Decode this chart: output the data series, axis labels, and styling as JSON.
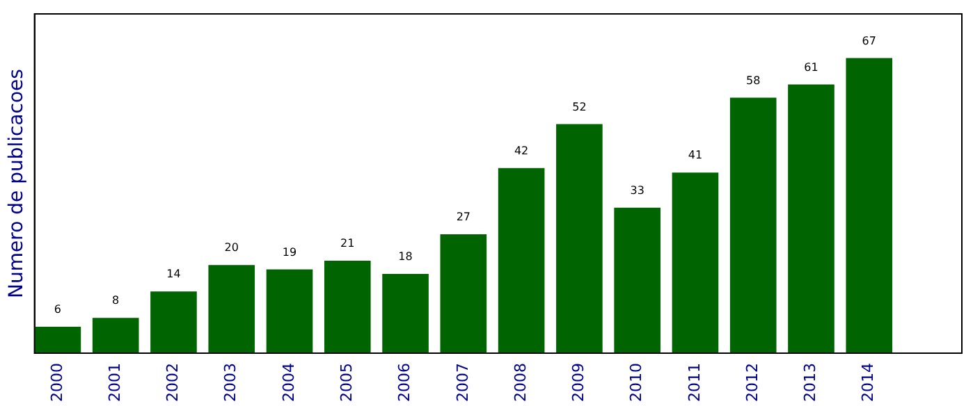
{
  "chart_data": {
    "type": "bar",
    "ylabel": "Numero de publicacoes",
    "x": [
      2000,
      2001,
      2002,
      2003,
      2004,
      2005,
      2006,
      2007,
      2008,
      2009,
      2010,
      2011,
      2012,
      2013,
      2014
    ],
    "values": [
      6,
      8,
      14,
      20,
      19,
      21,
      18,
      27,
      42,
      52,
      33,
      41,
      58,
      61,
      67
    ],
    "color": "#006400",
    "xlim": [
      1999.6,
      2015.6
    ],
    "xticks": [
      2000,
      2001,
      2002,
      2003,
      2004,
      2005,
      2006,
      2007,
      2008,
      2009,
      2010,
      2011,
      2012,
      2013,
      2014
    ],
    "ylim": [
      0,
      77
    ],
    "tick_labels": "x",
    "data_labels": true,
    "grid": false,
    "legend": false
  }
}
